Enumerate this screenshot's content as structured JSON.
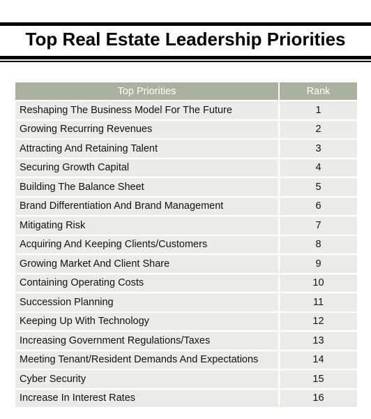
{
  "title": "Top Real Estate Leadership Priorities",
  "table": {
    "headers": {
      "priority": "Top Priorities",
      "rank": "Rank"
    },
    "rows": [
      {
        "priority": "Reshaping The Business Model For The Future",
        "rank": "1"
      },
      {
        "priority": "Growing Recurring Revenues",
        "rank": "2"
      },
      {
        "priority": "Attracting And Retaining Talent",
        "rank": "3"
      },
      {
        "priority": "Securing Growth Capital",
        "rank": "4"
      },
      {
        "priority": "Building The Balance Sheet",
        "rank": "5"
      },
      {
        "priority": "Brand Differentiation And Brand Management",
        "rank": "6"
      },
      {
        "priority": "Mitigating Risk",
        "rank": "7"
      },
      {
        "priority": "Acquiring And Keeping Clients/Customers",
        "rank": "8"
      },
      {
        "priority": "Growing Market And Client Share",
        "rank": "9"
      },
      {
        "priority": "Containing Operating Costs",
        "rank": "10"
      },
      {
        "priority": "Succession Planning",
        "rank": "11"
      },
      {
        "priority": "Keeping Up With Technology",
        "rank": "12"
      },
      {
        "priority": "Increasing Government Regulations/Taxes",
        "rank": "13"
      },
      {
        "priority": "Meeting Tenant/Resident Demands And Expectations",
        "rank": "14"
      },
      {
        "priority": "Cyber Security",
        "rank": "15"
      },
      {
        "priority": "Increase In Interest Rates",
        "rank": "16"
      }
    ]
  },
  "colors": {
    "header_background": "#a9b29f",
    "row_background": "#ebecea",
    "rule": "#000000"
  }
}
